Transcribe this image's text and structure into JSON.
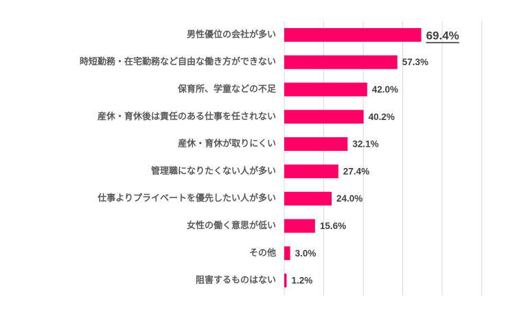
{
  "chart_data": {
    "type": "bar",
    "orientation": "horizontal",
    "title": "",
    "xlabel": "",
    "ylabel": "",
    "unit": "%",
    "xlim": [
      0,
      100
    ],
    "grid": true,
    "legend": "none",
    "bar_color": "#ff0066",
    "highlight_color": "#e6007e",
    "highlight_index": 0,
    "categories": [
      "男性優位の会社が多い",
      "時短勤務・在宅勤務など自由な働き方ができない",
      "保育所、学童などの不足",
      "産休・育休後は責任のある仕事を任されない",
      "産休・育休が取りにくい",
      "管理職になりたくない人が多い",
      "仕事よりプライベートを優先したい人が多い",
      "女性の働く意思が低い",
      "その他",
      "阻害するものはない"
    ],
    "values": [
      69.4,
      57.3,
      42.0,
      40.2,
      32.1,
      27.4,
      24.0,
      15.6,
      3.0,
      1.2
    ],
    "value_labels": [
      "69.4%",
      "57.3%",
      "42.0%",
      "40.2%",
      "32.1%",
      "27.4%",
      "24.0%",
      "15.6%",
      "3.0%",
      "1.2%"
    ]
  }
}
